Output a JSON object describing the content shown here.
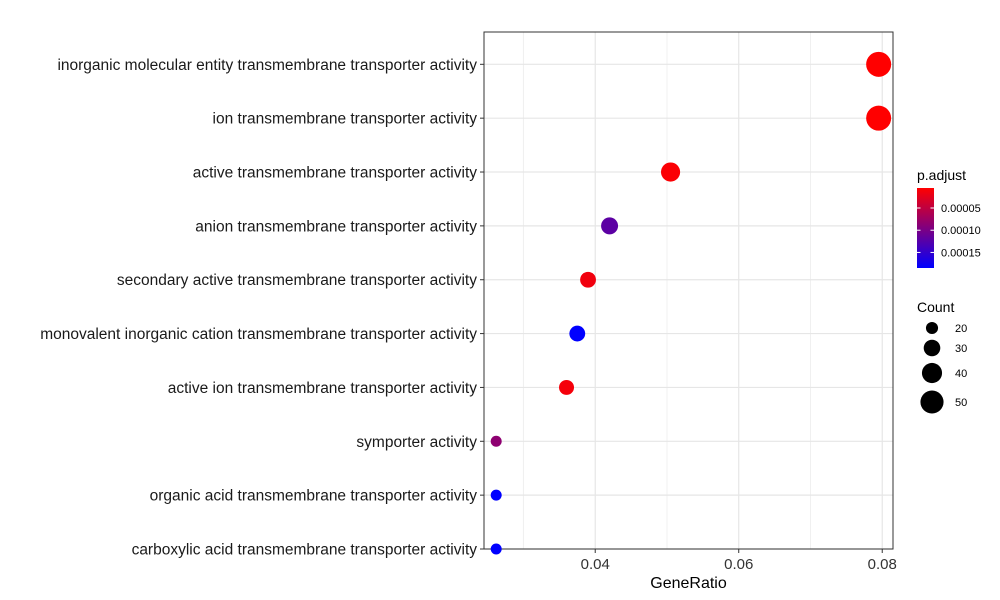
{
  "chart_data": {
    "type": "scatter",
    "xlabel": "GeneRatio",
    "ylabel": "",
    "xlim": [
      0.0245,
      0.0815
    ],
    "xticks": [
      0.04,
      0.06,
      0.08
    ],
    "xtick_labels": [
      "0.04",
      "0.06",
      "0.08"
    ],
    "grid": true,
    "categories": [
      "inorganic molecular entity transmembrane transporter activity",
      "ion transmembrane transporter activity",
      "active transmembrane transporter activity",
      "anion transmembrane transporter activity",
      "secondary active transmembrane transporter activity",
      "monovalent inorganic cation transmembrane transporter activity",
      "active ion transmembrane transporter activity",
      "symporter activity",
      "organic acid transmembrane transporter activity",
      "carboxylic acid transmembrane transporter activity"
    ],
    "points": [
      {
        "category": "inorganic molecular entity transmembrane transporter activity",
        "x": 0.0795,
        "count": 57,
        "p_adjust": 5e-06
      },
      {
        "category": "ion transmembrane transporter activity",
        "x": 0.0795,
        "count": 57,
        "p_adjust": 5e-06
      },
      {
        "category": "active transmembrane transporter activity",
        "x": 0.0505,
        "count": 37,
        "p_adjust": 8e-06
      },
      {
        "category": "anion transmembrane transporter activity",
        "x": 0.042,
        "count": 31,
        "p_adjust": 0.00012
      },
      {
        "category": "secondary active transmembrane transporter activity",
        "x": 0.039,
        "count": 28,
        "p_adjust": 1.5e-05
      },
      {
        "category": "monovalent inorganic cation transmembrane transporter activity",
        "x": 0.0375,
        "count": 28,
        "p_adjust": 0.00019
      },
      {
        "category": "active ion transmembrane transporter activity",
        "x": 0.036,
        "count": 26,
        "p_adjust": 1.2e-05
      },
      {
        "category": "symporter activity",
        "x": 0.0262,
        "count": 18,
        "p_adjust": 8.5e-05
      },
      {
        "category": "organic acid transmembrane transporter activity",
        "x": 0.0262,
        "count": 18,
        "p_adjust": 0.000185
      },
      {
        "category": "carboxylic acid transmembrane transporter activity",
        "x": 0.0262,
        "count": 18,
        "p_adjust": 0.000185
      }
    ],
    "color_legend": {
      "title": "p.adjust",
      "low_color": "#ff0000",
      "high_color": "#0000ff",
      "min": 5e-06,
      "max": 0.000185,
      "ticks": [
        5e-05,
        0.0001,
        0.00015
      ],
      "tick_labels": [
        "0.00005",
        "0.00010",
        "0.00015"
      ]
    },
    "size_legend": {
      "title": "Count",
      "values": [
        20,
        30,
        40,
        50
      ],
      "labels": [
        "20",
        "30",
        "40",
        "50"
      ],
      "min": 18,
      "max": 57
    },
    "legend_position": "right"
  }
}
